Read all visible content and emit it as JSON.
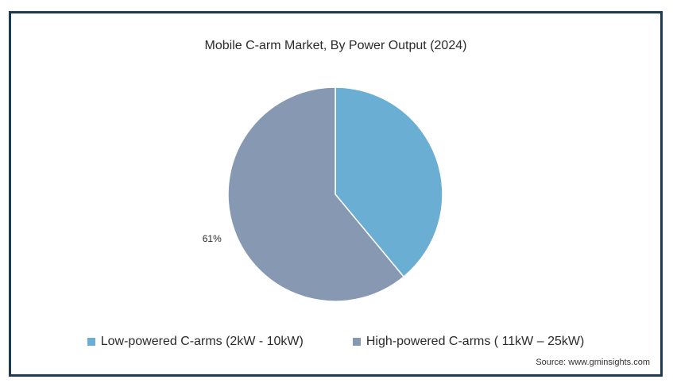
{
  "chart_data": {
    "type": "pie",
    "title": "Mobile C-arm Market, By Power Output (2024)",
    "series": [
      {
        "name": "Low-powered C-arms (2kW - 10kW)",
        "value": 39,
        "color": "#6aafd3",
        "label": ""
      },
      {
        "name": "High-powered C-arms ( 11kW – 25kW)",
        "value": 61,
        "color": "#8798b2",
        "label": "61%"
      }
    ],
    "legend_position": "bottom"
  },
  "source": "Source: www.gminsights.com",
  "colors": {
    "frame": "#1e3a52",
    "slice_border": "#ffffff"
  }
}
